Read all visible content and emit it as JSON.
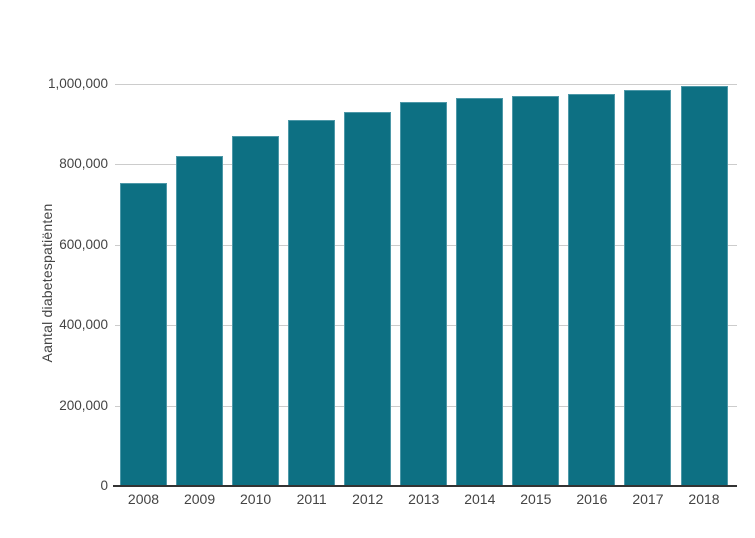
{
  "chart_data": {
    "type": "bar",
    "title": "",
    "xlabel": "",
    "ylabel": "Aantal diabetespatiënten",
    "categories": [
      "2008",
      "2009",
      "2010",
      "2011",
      "2012",
      "2013",
      "2014",
      "2015",
      "2016",
      "2017",
      "2018"
    ],
    "values": [
      755000,
      820000,
      870000,
      910000,
      930000,
      955000,
      965000,
      970000,
      975000,
      985000,
      995000
    ],
    "ylim": [
      0,
      1000000
    ],
    "yticks": [
      0,
      200000,
      400000,
      600000,
      800000,
      1000000
    ],
    "ytick_labels": [
      "0",
      "200,000",
      "400,000",
      "600,000",
      "800,000",
      "1,000,000"
    ],
    "grid": true,
    "legend": false,
    "background_color": "#ffffff",
    "bar_color": "#0d7083",
    "bar_edge_color": "#4d98a8",
    "gridline_color": "#cccccc",
    "axis_line_color": "#333333",
    "text_color": "#444444"
  }
}
